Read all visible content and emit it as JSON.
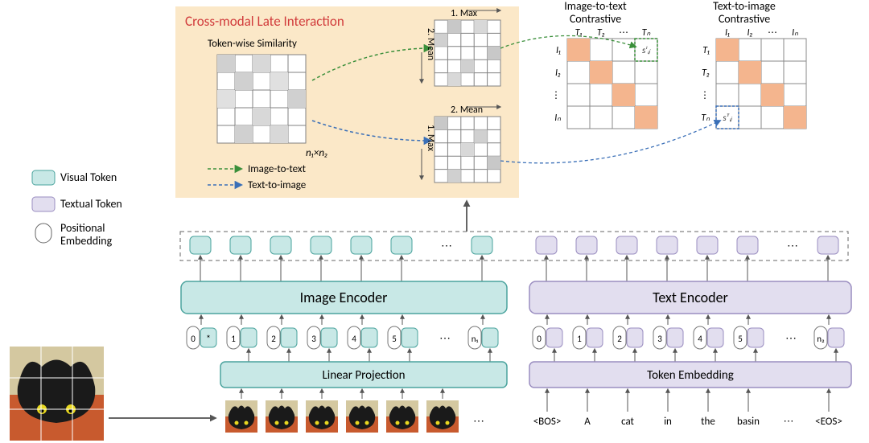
{
  "legend": {
    "visual": "Visual Token",
    "textual": "Textual Token",
    "positional": "Positional\nEmbedding",
    "colors": {
      "visual": "#c8e8e6",
      "textual": "#e2deef",
      "stroke": "#5a5a5a"
    }
  },
  "crossModal": {
    "title": "Cross-modal Late Interaction",
    "titleColor": "#d13b3b",
    "titleFontsize": 17,
    "bgColor": "#fbe8c8",
    "simLabel": "Token-wise Similarity",
    "simDim": "n₁×n₂",
    "arrows": {
      "i2t": {
        "label": "Image-to-text",
        "color": "#3a8f3a",
        "dash": "4,3"
      },
      "t2i": {
        "label": "Text-to-image",
        "color": "#3a6fb7",
        "dash": "4,3"
      }
    },
    "topGrid": {
      "side1": "1. Max",
      "side2": "2. Mean"
    },
    "botGrid": {
      "side1": "1. Max",
      "side2": "2. Mean"
    },
    "gridColors": {
      "fill": "#d0d0d0",
      "stroke": "#808080",
      "highlight": "#b8b8b8"
    }
  },
  "contrastive": {
    "i2t": {
      "title": "Image-to-text\nContrastive",
      "rows": [
        "I₁",
        "I₂",
        "⋮",
        "Iₙ"
      ],
      "cols": [
        "T₁",
        "T₂",
        "⋯",
        "Tₙ"
      ],
      "cellLabel": "sⁱᵢⱼ"
    },
    "t2i": {
      "title": "Text-to-image\nContrastive",
      "rows": [
        "T₁",
        "T₂",
        "⋮",
        "Tₙ"
      ],
      "cols": [
        "I₁",
        "I₂",
        "⋯",
        "Iₙ"
      ],
      "cellLabel": "sᵀᵢⱼ"
    },
    "diagColor": "#f4b58e",
    "selI2t": "#3a8f3a",
    "selT2i": "#3a6fb7"
  },
  "encoders": {
    "image": {
      "label": "Image Encoder",
      "proj": "Linear Projection",
      "color": "#c8e8e6",
      "stroke": "#4aa39d"
    },
    "text": {
      "label": "Text Encoder",
      "embed": "Token Embedding",
      "color": "#e2deef",
      "stroke": "#9a8dc0"
    }
  },
  "tokens": {
    "imageIdx": [
      "0",
      "1",
      "2",
      "3",
      "4",
      "5",
      "⋯",
      "n₁"
    ],
    "textIdx": [
      "0",
      "1",
      "2",
      "3",
      "4",
      "5",
      "⋯",
      "n₂"
    ],
    "textInput": [
      "<BOS>",
      "A",
      "cat",
      "in",
      "the",
      "basin",
      "⋯",
      "<EOS>"
    ]
  },
  "colors": {
    "catDark": "#1a1a1a",
    "catOrange": "#c85a2e",
    "catLight": "#d4c8a0",
    "catEye": "#e8d820"
  }
}
